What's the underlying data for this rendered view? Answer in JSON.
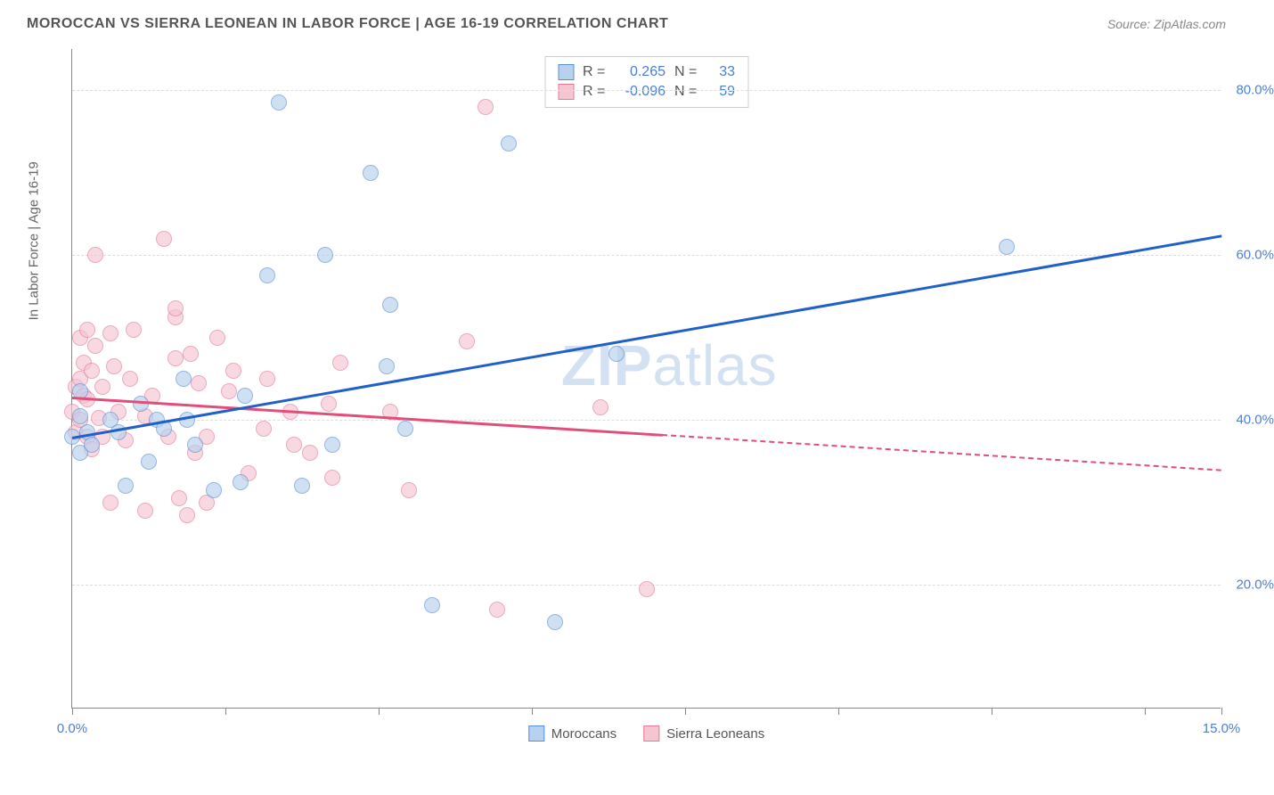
{
  "header": {
    "title": "MOROCCAN VS SIERRA LEONEAN IN LABOR FORCE | AGE 16-19 CORRELATION CHART",
    "source_prefix": "Source: ",
    "source": "ZipAtlas.com"
  },
  "chart": {
    "type": "scatter",
    "ylabel": "In Labor Force | Age 16-19",
    "xlim": [
      0,
      15
    ],
    "ylim": [
      5,
      85
    ],
    "x_ticks": [
      0,
      2,
      4,
      6,
      8,
      10,
      12,
      14,
      15
    ],
    "x_tick_labels": {
      "0": "0.0%",
      "15": "15.0%"
    },
    "y_gridlines": [
      20,
      40,
      60,
      80
    ],
    "y_tick_labels": {
      "20": "20.0%",
      "40": "40.0%",
      "60": "60.0%",
      "80": "80.0%"
    },
    "background_color": "#ffffff",
    "grid_color": "#dddddd",
    "axis_color": "#888888",
    "label_color": "#666666",
    "tick_label_color": "#4a7fd8",
    "marker_radius": 9,
    "marker_opacity": 0.65,
    "watermark": "ZIPatlas"
  },
  "series": {
    "moroccans": {
      "label": "Moroccans",
      "fill_color": "#b8d1ee",
      "stroke_color": "#5b8fd4",
      "line_color": "#2060c8",
      "regression": {
        "x1": 0,
        "y1": 38.0,
        "x2": 15,
        "y2": 62.5,
        "dashed_from": null
      },
      "stats": {
        "R": "0.265",
        "N": "33"
      },
      "points": [
        [
          0.0,
          38.0
        ],
        [
          0.1,
          40.5
        ],
        [
          0.1,
          36.0
        ],
        [
          0.1,
          43.5
        ],
        [
          0.2,
          38.5
        ],
        [
          0.25,
          37.0
        ],
        [
          0.5,
          40.0
        ],
        [
          0.6,
          38.5
        ],
        [
          0.7,
          32.0
        ],
        [
          0.9,
          42.0
        ],
        [
          1.0,
          35.0
        ],
        [
          1.1,
          40.0
        ],
        [
          1.2,
          39.0
        ],
        [
          1.45,
          45.0
        ],
        [
          1.5,
          40.0
        ],
        [
          1.6,
          37.0
        ],
        [
          1.85,
          31.5
        ],
        [
          2.2,
          32.5
        ],
        [
          2.25,
          43.0
        ],
        [
          2.55,
          57.5
        ],
        [
          2.7,
          78.5
        ],
        [
          3.0,
          32.0
        ],
        [
          3.3,
          60.0
        ],
        [
          3.4,
          37.0
        ],
        [
          3.9,
          70.0
        ],
        [
          4.1,
          46.5
        ],
        [
          4.15,
          54.0
        ],
        [
          4.35,
          39.0
        ],
        [
          4.7,
          17.5
        ],
        [
          5.7,
          73.5
        ],
        [
          6.3,
          15.5
        ],
        [
          7.1,
          48.0
        ],
        [
          12.2,
          61.0
        ]
      ]
    },
    "sierra_leoneans": {
      "label": "Sierra Leoneans",
      "fill_color": "#f5c5d2",
      "stroke_color": "#e57a9a",
      "line_color": "#e24d7a",
      "regression": {
        "x1": 0,
        "y1": 42.8,
        "x2": 15,
        "y2": 34.0,
        "dashed_from": 7.7
      },
      "stats": {
        "R": "-0.096",
        "N": "59"
      },
      "points": [
        [
          0.0,
          41.0
        ],
        [
          0.05,
          44.0
        ],
        [
          0.05,
          38.5
        ],
        [
          0.1,
          45.0
        ],
        [
          0.1,
          40.0
        ],
        [
          0.1,
          50.0
        ],
        [
          0.15,
          43.0
        ],
        [
          0.15,
          47.0
        ],
        [
          0.2,
          38.0
        ],
        [
          0.2,
          51.0
        ],
        [
          0.2,
          42.5
        ],
        [
          0.25,
          36.5
        ],
        [
          0.25,
          46.0
        ],
        [
          0.3,
          60.0
        ],
        [
          0.3,
          49.0
        ],
        [
          0.35,
          40.2
        ],
        [
          0.4,
          44.0
        ],
        [
          0.4,
          38.0
        ],
        [
          0.5,
          50.5
        ],
        [
          0.5,
          30.0
        ],
        [
          0.55,
          46.5
        ],
        [
          0.6,
          41.0
        ],
        [
          0.7,
          37.5
        ],
        [
          0.75,
          45.0
        ],
        [
          0.8,
          51.0
        ],
        [
          0.95,
          40.5
        ],
        [
          0.95,
          29.0
        ],
        [
          1.05,
          43.0
        ],
        [
          1.2,
          62.0
        ],
        [
          1.25,
          38.0
        ],
        [
          1.35,
          52.5
        ],
        [
          1.35,
          53.5
        ],
        [
          1.35,
          47.5
        ],
        [
          1.4,
          30.5
        ],
        [
          1.5,
          28.5
        ],
        [
          1.55,
          48.0
        ],
        [
          1.6,
          36.0
        ],
        [
          1.65,
          44.5
        ],
        [
          1.75,
          38.0
        ],
        [
          1.75,
          30.0
        ],
        [
          1.9,
          50.0
        ],
        [
          2.05,
          43.5
        ],
        [
          2.1,
          46.0
        ],
        [
          2.3,
          33.5
        ],
        [
          2.5,
          39.0
        ],
        [
          2.55,
          45.0
        ],
        [
          2.85,
          41.0
        ],
        [
          2.9,
          37.0
        ],
        [
          3.1,
          36.0
        ],
        [
          3.35,
          42.0
        ],
        [
          3.4,
          33.0
        ],
        [
          3.5,
          47.0
        ],
        [
          4.15,
          41.0
        ],
        [
          4.4,
          31.5
        ],
        [
          5.15,
          49.5
        ],
        [
          5.4,
          78.0
        ],
        [
          5.55,
          17.0
        ],
        [
          6.9,
          41.5
        ],
        [
          7.5,
          19.5
        ]
      ]
    }
  },
  "stats_box": {
    "R_label": "R =",
    "N_label": "N ="
  }
}
